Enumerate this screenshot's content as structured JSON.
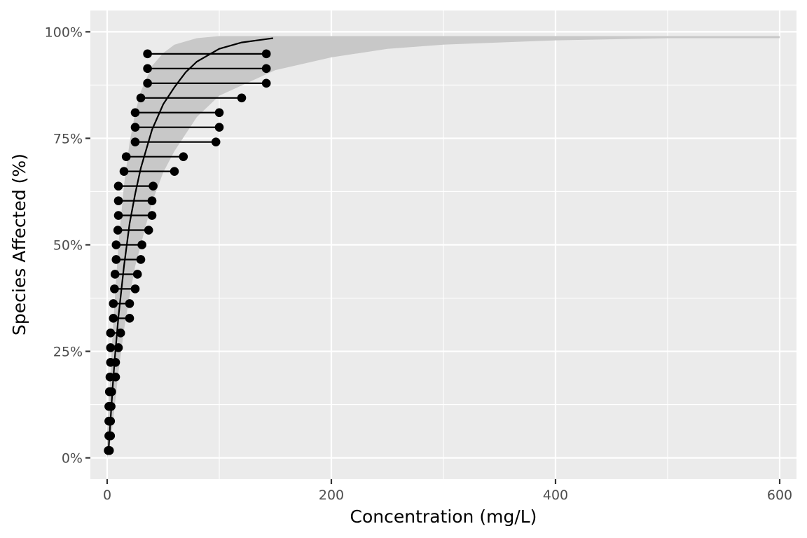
{
  "chart_data": {
    "type": "scatter",
    "title": "",
    "xlabel": "Concentration (mg/L)",
    "ylabel": "Species Affected (%)",
    "xlim": [
      -15,
      615
    ],
    "ylim": [
      -0.05,
      1.05
    ],
    "x_ticks": [
      0,
      200,
      400,
      600
    ],
    "x_tick_labels": [
      "0",
      "200",
      "400",
      "600"
    ],
    "x_minor_ticks": [
      100,
      300,
      500
    ],
    "y_ticks": [
      0,
      0.25,
      0.5,
      0.75,
      1.0
    ],
    "y_tick_labels": [
      "0%",
      "25%",
      "50%",
      "75%",
      "100%"
    ],
    "y_minor_ticks": [
      0.125,
      0.375,
      0.625,
      0.875
    ],
    "grid": true,
    "legend": "none",
    "colors": {
      "panel_background": "#ebebeb",
      "grid_line": "#ffffff",
      "confidence_band": "#c8c8c8",
      "data": "#000000"
    },
    "intervals": [
      {
        "lower": 1.0,
        "upper": 2.0,
        "proportion": 0.0172
      },
      {
        "lower": 1.5,
        "upper": 3.0,
        "proportion": 0.0517
      },
      {
        "lower": 1.5,
        "upper": 3.0,
        "proportion": 0.0862
      },
      {
        "lower": 1.5,
        "upper": 3.5,
        "proportion": 0.1207
      },
      {
        "lower": 2.0,
        "upper": 4.0,
        "proportion": 0.1552
      },
      {
        "lower": 2.5,
        "upper": 7.5,
        "proportion": 0.1897
      },
      {
        "lower": 3.0,
        "upper": 7.5,
        "proportion": 0.2241
      },
      {
        "lower": 3.0,
        "upper": 10.0,
        "proportion": 0.2586
      },
      {
        "lower": 3.0,
        "upper": 12.0,
        "proportion": 0.2931
      },
      {
        "lower": 5.5,
        "upper": 20.0,
        "proportion": 0.3276
      },
      {
        "lower": 5.5,
        "upper": 20.0,
        "proportion": 0.3621
      },
      {
        "lower": 6.5,
        "upper": 25.0,
        "proportion": 0.3966
      },
      {
        "lower": 7.0,
        "upper": 27.0,
        "proportion": 0.431
      },
      {
        "lower": 8.0,
        "upper": 30.0,
        "proportion": 0.4655
      },
      {
        "lower": 8.0,
        "upper": 31.0,
        "proportion": 0.5
      },
      {
        "lower": 9.5,
        "upper": 37.0,
        "proportion": 0.5345
      },
      {
        "lower": 10.0,
        "upper": 40.0,
        "proportion": 0.569
      },
      {
        "lower": 10.0,
        "upper": 40.0,
        "proportion": 0.6034
      },
      {
        "lower": 10.0,
        "upper": 41.0,
        "proportion": 0.6379
      },
      {
        "lower": 15.0,
        "upper": 60.0,
        "proportion": 0.6724
      },
      {
        "lower": 17.0,
        "upper": 68.0,
        "proportion": 0.7069
      },
      {
        "lower": 25.0,
        "upper": 97.0,
        "proportion": 0.7414
      },
      {
        "lower": 25.0,
        "upper": 100.0,
        "proportion": 0.7759
      },
      {
        "lower": 25.0,
        "upper": 100.0,
        "proportion": 0.8103
      },
      {
        "lower": 30.0,
        "upper": 120.0,
        "proportion": 0.8448
      },
      {
        "lower": 36.0,
        "upper": 142.0,
        "proportion": 0.8793
      },
      {
        "lower": 36.0,
        "upper": 142.0,
        "proportion": 0.9138
      },
      {
        "lower": 36.0,
        "upper": 142.0,
        "proportion": 0.9483
      }
    ],
    "fitted_curve": {
      "x": [
        1,
        2,
        3,
        4,
        5,
        7,
        10,
        15,
        20,
        25,
        30,
        40,
        50,
        60,
        70,
        80,
        100,
        120,
        148
      ],
      "y": [
        0.01,
        0.05,
        0.09,
        0.13,
        0.17,
        0.24,
        0.33,
        0.45,
        0.55,
        0.62,
        0.68,
        0.77,
        0.83,
        0.87,
        0.905,
        0.93,
        0.96,
        0.975,
        0.985
      ]
    },
    "confidence_band": {
      "x": [
        0,
        2,
        5,
        10,
        15,
        20,
        25,
        30,
        40,
        50,
        60,
        80,
        100,
        150,
        200,
        250,
        300,
        400,
        500,
        600
      ],
      "lower": [
        0.0,
        0.02,
        0.08,
        0.2,
        0.3,
        0.38,
        0.45,
        0.5,
        0.6,
        0.67,
        0.72,
        0.8,
        0.85,
        0.91,
        0.94,
        0.96,
        0.97,
        0.98,
        0.985,
        0.985
      ],
      "upper": [
        0.06,
        0.15,
        0.3,
        0.5,
        0.64,
        0.74,
        0.81,
        0.86,
        0.92,
        0.95,
        0.97,
        0.985,
        0.99,
        0.99,
        0.99,
        0.99,
        0.99,
        0.99,
        0.99,
        0.99
      ]
    }
  }
}
